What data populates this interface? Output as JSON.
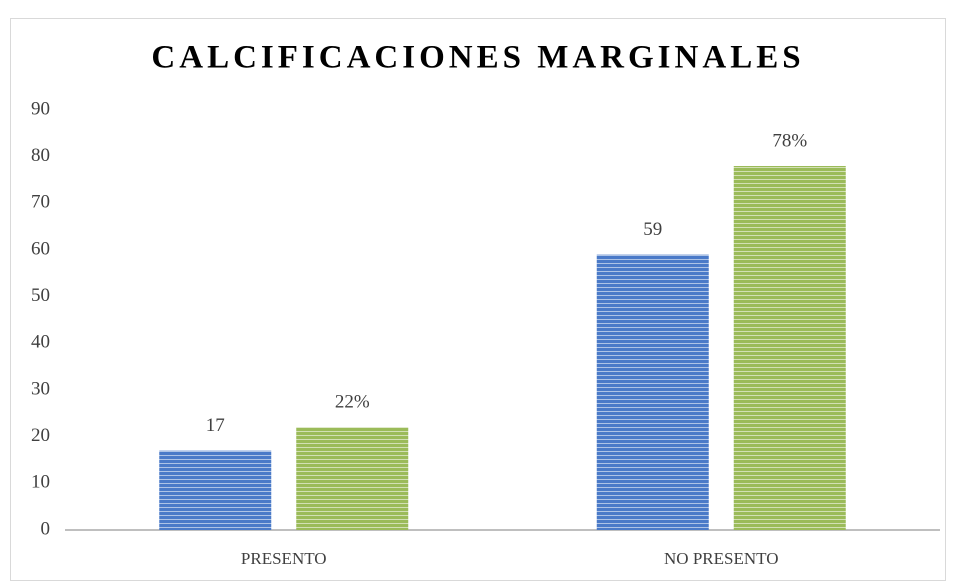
{
  "chart_data": {
    "type": "bar",
    "title": "CALCIFICACIONES MARGINALES",
    "categories": [
      "PRESENTO",
      "NO PRESENTO"
    ],
    "series": [
      {
        "color": "#4a7ac8",
        "values": [
          17,
          59
        ]
      },
      {
        "color": "#9bbb59",
        "values": [
          22,
          78
        ],
        "value_labels": [
          "22%",
          "78%"
        ]
      }
    ],
    "ylim": [
      0,
      90
    ],
    "yticks": [
      0,
      10,
      20,
      30,
      40,
      50,
      60,
      70,
      80,
      90
    ],
    "grid": false
  }
}
